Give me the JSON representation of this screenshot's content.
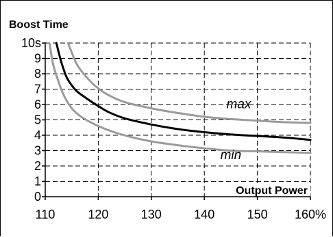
{
  "chart_data": {
    "type": "line",
    "title": "Boost Time",
    "xlabel": "Output Power",
    "ylabel": "",
    "xlim": [
      110,
      160
    ],
    "ylim": [
      0,
      10
    ],
    "x_ticks": [
      110,
      120,
      130,
      140,
      150,
      160
    ],
    "x_tick_labels": [
      "110",
      "120",
      "130",
      "140",
      "150",
      "160%"
    ],
    "y_ticks": [
      0,
      1,
      2,
      3,
      4,
      5,
      6,
      7,
      8,
      9,
      10
    ],
    "y_tick_labels": [
      "0",
      "1",
      "2",
      "3",
      "4",
      "5",
      "6",
      "7",
      "8",
      "9",
      "10s"
    ],
    "grid": true,
    "grid_style": "dashed",
    "series": [
      {
        "name": "max",
        "color": "#9b9b9b",
        "points": [
          [
            114.3,
            10
          ],
          [
            116,
            8.6
          ],
          [
            118,
            7.7
          ],
          [
            120,
            7.05
          ],
          [
            122,
            6.6
          ],
          [
            125,
            6.15
          ],
          [
            130,
            5.75
          ],
          [
            135,
            5.45
          ],
          [
            140,
            5.2
          ],
          [
            145,
            5.05
          ],
          [
            150,
            4.95
          ],
          [
            155,
            4.85
          ],
          [
            160,
            4.8
          ]
        ]
      },
      {
        "name": "",
        "color": "#000000",
        "points": [
          [
            112.1,
            10
          ],
          [
            113,
            8.8
          ],
          [
            114,
            7.8
          ],
          [
            115,
            7.25
          ],
          [
            116,
            6.85
          ],
          [
            118,
            6.35
          ],
          [
            120,
            5.9
          ],
          [
            122,
            5.5
          ],
          [
            125,
            5.1
          ],
          [
            130,
            4.7
          ],
          [
            135,
            4.4
          ],
          [
            140,
            4.2
          ],
          [
            145,
            4.05
          ],
          [
            150,
            3.95
          ],
          [
            155,
            3.85
          ],
          [
            160,
            3.7
          ]
        ]
      },
      {
        "name": "min",
        "color": "#9b9b9b",
        "points": [
          [
            110.8,
            10
          ],
          [
            111.5,
            8.6
          ],
          [
            112.5,
            7.5
          ],
          [
            113.5,
            6.6
          ],
          [
            115,
            5.75
          ],
          [
            117,
            5.15
          ],
          [
            120,
            4.6
          ],
          [
            123,
            4.2
          ],
          [
            126,
            3.9
          ],
          [
            130,
            3.6
          ],
          [
            135,
            3.35
          ],
          [
            140,
            3.15
          ],
          [
            145,
            3.0
          ],
          [
            150,
            2.95
          ],
          [
            155,
            2.9
          ],
          [
            160,
            2.85
          ]
        ]
      }
    ],
    "annotations": [
      {
        "text": "max",
        "x": 146.5,
        "y": 5.75
      },
      {
        "text": "min",
        "x": 145,
        "y": 2.45
      }
    ]
  }
}
